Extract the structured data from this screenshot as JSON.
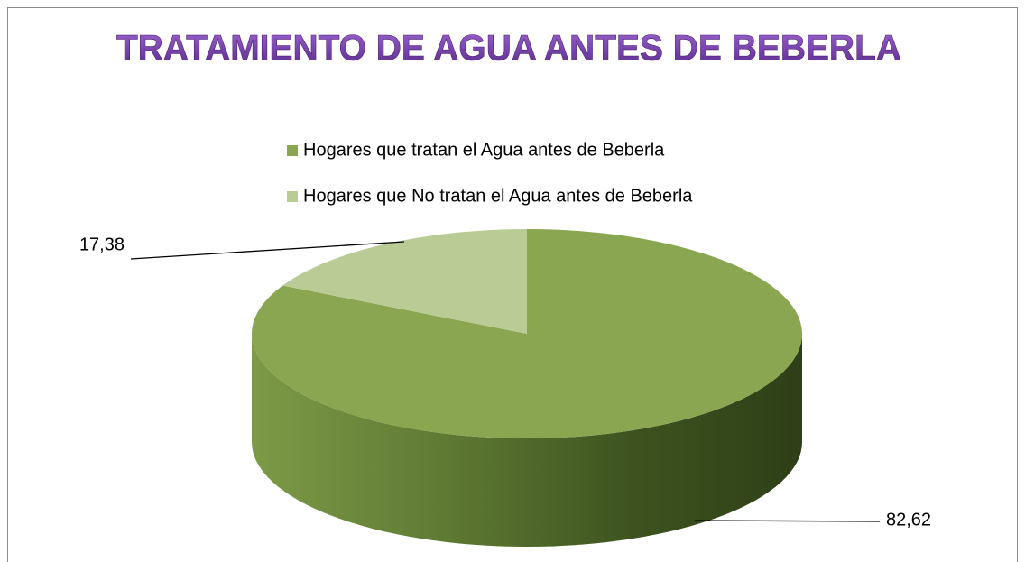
{
  "chart_data": {
    "type": "pie",
    "title": "TRATAMIENTO DE AGUA ANTES DE BEBERLA",
    "categories": [
      "Hogares que tratan el Agua antes de Beberla",
      "Hogares que No tratan el Agua antes de Beberla"
    ],
    "values": [
      82.62,
      17.38
    ],
    "value_labels": [
      "82,62",
      "17,38"
    ],
    "colors": [
      "#8aa651",
      "#b9cc96"
    ],
    "legend": "top"
  }
}
